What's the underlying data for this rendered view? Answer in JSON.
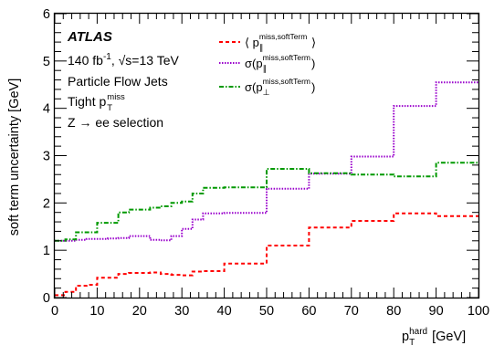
{
  "chart_data": {
    "type": "line",
    "style": "step",
    "xlabel": {
      "main": "p",
      "sub": "T",
      "sup": "hard",
      "unit": " [GeV]"
    },
    "ylabel": "soft term uncertainty [GeV]",
    "xlim": [
      0,
      100
    ],
    "ylim": [
      0,
      6
    ],
    "x_ticks": [
      0,
      10,
      20,
      30,
      40,
      50,
      60,
      70,
      80,
      90,
      100
    ],
    "y_ticks": [
      0,
      1,
      2,
      3,
      4,
      5,
      6
    ],
    "grid": false,
    "legend_position": "top-right",
    "bin_edges": [
      0,
      2.5,
      5,
      7.5,
      10,
      12.5,
      15,
      17.5,
      20,
      22.5,
      25,
      27.5,
      30,
      32.5,
      35,
      40,
      50,
      60,
      70,
      80,
      90,
      100
    ],
    "series": [
      {
        "name": "⟨ p∥^{miss,softTerm} ⟩",
        "label": {
          "pre": "⟨ p",
          "sub": "∥",
          "sup": "miss,softTerm",
          "post": " ⟩"
        },
        "color": "#ff0000",
        "dash": "4,3",
        "values": [
          0.05,
          0.12,
          0.25,
          0.27,
          0.42,
          0.42,
          0.5,
          0.52,
          0.52,
          0.53,
          0.5,
          0.48,
          0.47,
          0.55,
          0.56,
          0.72,
          1.1,
          1.48,
          1.62,
          1.78,
          1.72
        ]
      },
      {
        "name": "σ(p∥^{miss,softTerm})",
        "label": {
          "pre": "σ(p",
          "sub": "∥",
          "sup": "miss,softTerm",
          "post": ")"
        },
        "color": "#9900cc",
        "dash": "1.5,1.5",
        "values": [
          1.2,
          1.2,
          1.22,
          1.24,
          1.24,
          1.25,
          1.26,
          1.3,
          1.3,
          1.22,
          1.21,
          1.3,
          1.45,
          1.65,
          1.78,
          1.79,
          2.3,
          2.62,
          2.98,
          4.05,
          4.55
        ]
      },
      {
        "name": "σ(p⊥^{miss,softTerm})",
        "label": {
          "pre": "σ(p",
          "sub": "⊥",
          "sup": "miss,softTerm",
          "post": ")"
        },
        "color": "#009900",
        "dash": "5,2,1.5,2",
        "values": [
          1.2,
          1.23,
          1.38,
          1.38,
          1.58,
          1.58,
          1.8,
          1.86,
          1.86,
          1.9,
          1.93,
          2.0,
          2.03,
          2.2,
          2.32,
          2.33,
          2.72,
          2.63,
          2.6,
          2.56,
          2.85
        ]
      }
    ],
    "annotations": {
      "experiment": "ATLAS",
      "lumi": {
        "pre": "140 fb",
        "sup": "-1",
        "mid": ", √s=13 TeV"
      },
      "line2": "Particle Flow Jets",
      "line3": {
        "pre": "Tight p",
        "sub": "T",
        "sup": "miss"
      },
      "line4": "Z → ee selection"
    }
  }
}
